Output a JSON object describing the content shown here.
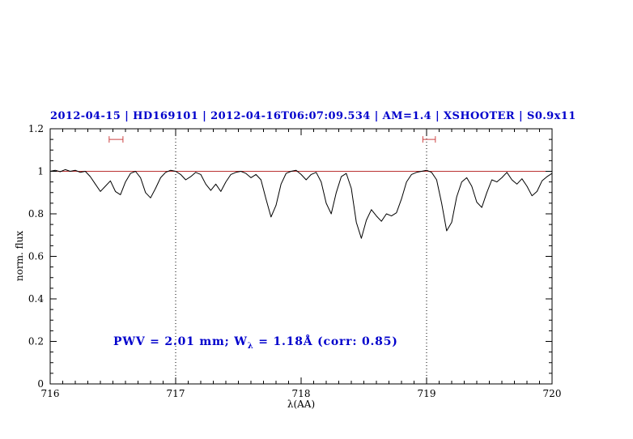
{
  "colors": {
    "title": "#0000cc",
    "annotation": "#0000cc",
    "continuum": "#bb3333",
    "range_marker": "#cc4444",
    "spectrum": "#000000",
    "axis": "#000000"
  },
  "annotation": {
    "part1": "PWV = 2.01 mm; W",
    "sub": "λ",
    "part2": " = 1.18Å (corr: 0.85)"
  },
  "chart_data": {
    "type": "line",
    "title": "2012-04-15 | HD169101 | 2012-04-16T06:07:09.534 | AM=1.4 | XSHOOTER | S0.9x11",
    "xlabel": "λ(AA)",
    "ylabel": "norm. flux",
    "xlim": [
      716,
      720
    ],
    "ylim": [
      0,
      1.2
    ],
    "x_ticks": [
      716,
      717,
      718,
      719,
      720
    ],
    "x_tick_labels": [
      "716",
      "717",
      "718",
      "719",
      "720"
    ],
    "x_minor_step": 0.1,
    "y_ticks": [
      0,
      0.2,
      0.4,
      0.6,
      0.8,
      1.0,
      1.2
    ],
    "y_tick_labels": [
      "0",
      "0.2",
      "0.4",
      "0.6",
      "0.8",
      "1",
      "1.2"
    ],
    "y_minor_step": 0.05,
    "grid": false,
    "legend": "none",
    "continuum_y": 1.0,
    "dotted_vlines": [
      717,
      719
    ],
    "range_markers": [
      {
        "x1": 716.47,
        "x2": 716.58,
        "y": 1.15
      },
      {
        "x1": 718.97,
        "x2": 719.07,
        "y": 1.15
      }
    ],
    "spectrum": {
      "x_start": 716.0,
      "dx": 0.04,
      "flux": [
        1.0,
        1.005,
        0.998,
        1.008,
        1.0,
        1.005,
        0.995,
        1.0,
        0.975,
        0.94,
        0.905,
        0.93,
        0.955,
        0.905,
        0.89,
        0.95,
        0.99,
        1.0,
        0.97,
        0.9,
        0.875,
        0.92,
        0.97,
        0.995,
        1.005,
        1.0,
        0.985,
        0.96,
        0.975,
        0.995,
        0.985,
        0.94,
        0.91,
        0.94,
        0.905,
        0.95,
        0.985,
        0.995,
        1.0,
        0.99,
        0.97,
        0.985,
        0.96,
        0.87,
        0.785,
        0.84,
        0.94,
        0.99,
        1.0,
        1.005,
        0.985,
        0.96,
        0.985,
        0.995,
        0.95,
        0.85,
        0.8,
        0.9,
        0.975,
        0.99,
        0.92,
        0.76,
        0.685,
        0.77,
        0.82,
        0.79,
        0.765,
        0.8,
        0.79,
        0.805,
        0.87,
        0.95,
        0.985,
        0.995,
        1.0,
        1.005,
        0.995,
        0.96,
        0.85,
        0.72,
        0.76,
        0.88,
        0.95,
        0.97,
        0.93,
        0.855,
        0.83,
        0.9,
        0.96,
        0.95,
        0.97,
        0.995,
        0.96,
        0.94,
        0.965,
        0.93,
        0.885,
        0.905,
        0.955,
        0.975,
        0.99
      ]
    }
  }
}
